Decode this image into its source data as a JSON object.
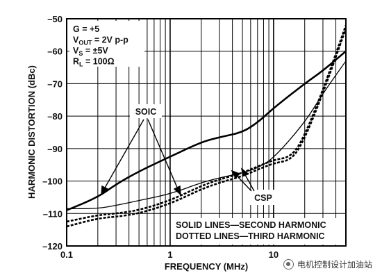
{
  "chart_data": {
    "type": "line",
    "x_scale": "log",
    "xlim": [
      0.1,
      50
    ],
    "ylim": [
      -120,
      -50
    ],
    "xlabel": "FREQUENCY (MHz)",
    "ylabel": "HARMONIC DISTORTION (dBc)",
    "xticks": [
      {
        "value": 0.1,
        "label": "0.1"
      },
      {
        "value": 1,
        "label": "1"
      },
      {
        "value": 10,
        "label": "10"
      }
    ],
    "yticks": [
      -120,
      -110,
      -100,
      -90,
      -80,
      -70,
      -60,
      -50
    ],
    "grid": true,
    "conditions": [
      {
        "key": "G",
        "sub": "",
        "value": " = +5"
      },
      {
        "key": "V",
        "sub": "OUT",
        "value": " = 2V p-p"
      },
      {
        "key": "V",
        "sub": "S",
        "value": " = ±5V"
      },
      {
        "key": "R",
        "sub": "L",
        "value": " = 100Ω"
      }
    ],
    "annotations": {
      "soic": "SOIC",
      "csp": "CSP"
    },
    "legend_text": [
      "SOLID LINES—SECOND HARMONIC",
      "DOTTED LINES—THIRD HARMONIC"
    ],
    "series": [
      {
        "id": "soic-second",
        "style": "solid",
        "weight": "thick",
        "x": [
          0.1,
          0.2,
          0.3,
          0.5,
          1,
          2,
          3,
          5,
          7,
          10,
          20,
          30,
          50
        ],
        "y": [
          -109,
          -105,
          -101,
          -97,
          -92.5,
          -88,
          -86.5,
          -85,
          -82,
          -77.5,
          -70,
          -66,
          -60
        ]
      },
      {
        "id": "csp-second",
        "style": "solid",
        "weight": "thin",
        "x": [
          0.1,
          0.2,
          0.3,
          0.5,
          1,
          2,
          3,
          5,
          7,
          10,
          20,
          30,
          50
        ],
        "y": [
          -108.5,
          -108.5,
          -107.5,
          -106,
          -104,
          -100.5,
          -99,
          -97.5,
          -96,
          -93,
          -82,
          -73,
          -63
        ]
      },
      {
        "id": "soic-third",
        "style": "dotted",
        "weight": "thick",
        "x": [
          0.1,
          0.2,
          0.3,
          0.5,
          1,
          2,
          3,
          5,
          7,
          10,
          15,
          20,
          30,
          50
        ],
        "y": [
          -114,
          -111.5,
          -111,
          -110,
          -107,
          -102.5,
          -100.5,
          -98.5,
          -96.5,
          -94.5,
          -93.5,
          -87,
          -73,
          -53
        ]
      },
      {
        "id": "csp-third",
        "style": "dotted",
        "weight": "thick",
        "x": [
          0.1,
          0.2,
          0.3,
          0.5,
          1,
          2,
          3,
          5,
          7,
          10,
          15,
          20,
          30,
          50
        ],
        "y": [
          -112.5,
          -110.5,
          -110,
          -109,
          -106,
          -101.5,
          -99.5,
          -97.5,
          -95.5,
          -93.5,
          -92.5,
          -86,
          -72,
          -52
        ]
      }
    ]
  },
  "watermark": {
    "text": "电机控制设计加油站",
    "icon": "wechat-icon"
  }
}
